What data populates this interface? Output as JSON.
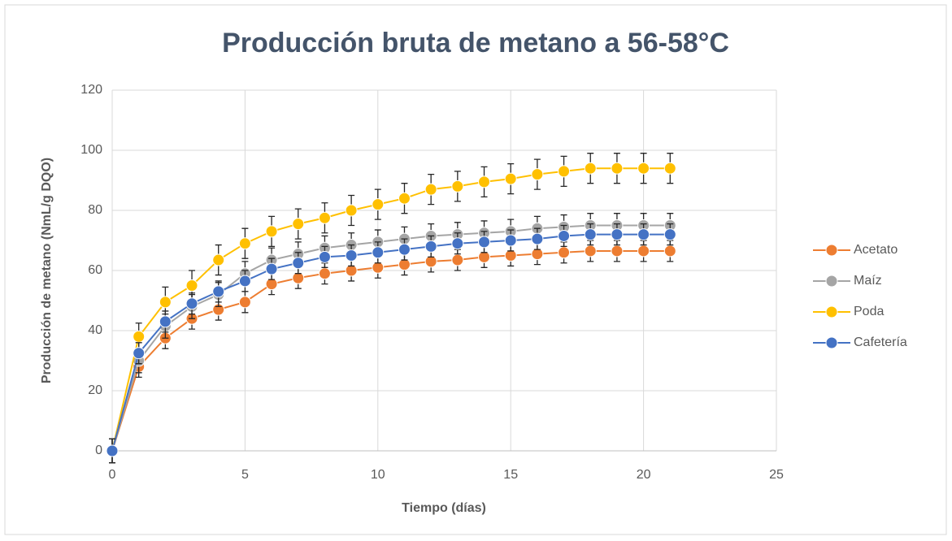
{
  "chart_data": {
    "type": "line",
    "title": "Producción bruta de metano a 56-58°C",
    "x_label": "Tiempo (días)",
    "y_label": "Producción de metano (NmL/g DQO)",
    "x": [
      0,
      1,
      2,
      3,
      4,
      5,
      6,
      7,
      8,
      9,
      10,
      11,
      12,
      13,
      14,
      15,
      16,
      17,
      18,
      19,
      20,
      21
    ],
    "series": [
      {
        "name": "Acetato",
        "color": "#ed7d31",
        "values": [
          0,
          28,
          37.5,
          44,
          47,
          49.5,
          55.5,
          57.5,
          59,
          60,
          61,
          62,
          63,
          63.5,
          64.5,
          65,
          65.5,
          66,
          66.5,
          66.5,
          66.5,
          66.5
        ],
        "errors": [
          4,
          3.5,
          3.5,
          3.5,
          3.5,
          3.5,
          3.5,
          3.5,
          3.5,
          3.5,
          3.5,
          3.5,
          3.5,
          3.5,
          3.5,
          3.5,
          3.5,
          3.5,
          3.5,
          3.5,
          3.5,
          3.5
        ]
      },
      {
        "name": "Maíz",
        "color": "#a5a5a5",
        "values": [
          0,
          30,
          41.5,
          48,
          52,
          59,
          63.5,
          65.5,
          67.5,
          68.5,
          69.5,
          70.5,
          71.5,
          72,
          72.5,
          73,
          74,
          74.5,
          75,
          75,
          75,
          75
        ],
        "errors": [
          4,
          4,
          4,
          4,
          4,
          4,
          4,
          4,
          4,
          4,
          4,
          4,
          4,
          4,
          4,
          4,
          4,
          4,
          4,
          4,
          4,
          4
        ]
      },
      {
        "name": "Poda",
        "color": "#ffc000",
        "values": [
          0,
          38,
          49.5,
          55,
          63.5,
          69,
          73,
          75.5,
          77.5,
          80,
          82,
          84,
          87,
          88,
          89.5,
          90.5,
          92,
          93,
          94,
          94,
          94,
          94
        ],
        "errors": [
          4,
          4.5,
          5,
          5,
          5,
          5,
          5,
          5,
          5,
          5,
          5,
          5,
          5,
          5,
          5,
          5,
          5,
          5,
          5,
          5,
          5,
          5
        ]
      },
      {
        "name": "Cafetería",
        "color": "#4472c4",
        "values": [
          0,
          32.5,
          43,
          49,
          53,
          56.5,
          60.5,
          62.5,
          64.5,
          65,
          66,
          67,
          68,
          69,
          69.5,
          70,
          70.5,
          71.5,
          72,
          72,
          72,
          72
        ],
        "errors": [
          4,
          3.5,
          3.5,
          3.5,
          3.5,
          3.5,
          3.5,
          3.5,
          3.5,
          3.5,
          3.5,
          3.5,
          3.5,
          3.5,
          3.5,
          3.5,
          3.5,
          3.5,
          3.5,
          3.5,
          3.5,
          3.5
        ]
      }
    ],
    "xlim": [
      0,
      25
    ],
    "xticks": [
      0,
      5,
      10,
      15,
      20,
      25
    ],
    "ylim": [
      0,
      120
    ],
    "yticks": [
      0,
      20,
      40,
      60,
      80,
      100,
      120
    ],
    "grid": true,
    "legend": "right"
  }
}
